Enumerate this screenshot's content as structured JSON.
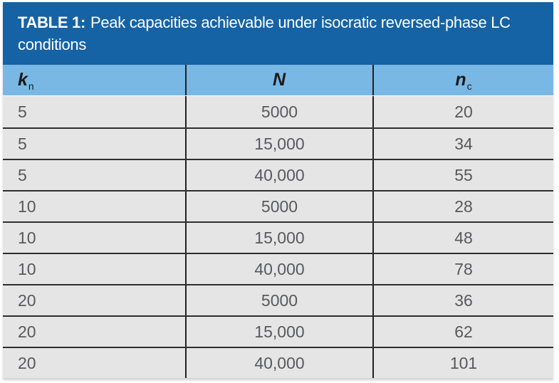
{
  "table": {
    "title_label": "TABLE 1:",
    "title_text": "Peak capacities achievable under isocratic reversed-phase LC conditions",
    "columns": [
      {
        "symbol": "k",
        "subscript": "n"
      },
      {
        "symbol": "N",
        "subscript": ""
      },
      {
        "symbol": "n",
        "subscript": "c"
      }
    ],
    "rows": [
      [
        "5",
        "5000",
        "20"
      ],
      [
        "5",
        "15,000",
        "34"
      ],
      [
        "5",
        "40,000",
        "55"
      ],
      [
        "10",
        "5000",
        "28"
      ],
      [
        "10",
        "15,000",
        "48"
      ],
      [
        "10",
        "40,000",
        "78"
      ],
      [
        "20",
        "5000",
        "36"
      ],
      [
        "20",
        "15,000",
        "62"
      ],
      [
        "20",
        "40,000",
        "101"
      ]
    ]
  },
  "chart_data": {
    "type": "table",
    "title": "TABLE 1: Peak capacities achievable under isocratic reversed-phase LC conditions",
    "columns": [
      "k_n",
      "N",
      "n_c"
    ],
    "rows": [
      [
        5,
        5000,
        20
      ],
      [
        5,
        15000,
        34
      ],
      [
        5,
        40000,
        55
      ],
      [
        10,
        5000,
        28
      ],
      [
        10,
        15000,
        48
      ],
      [
        10,
        40000,
        78
      ],
      [
        20,
        5000,
        36
      ],
      [
        20,
        15000,
        62
      ],
      [
        20,
        40000,
        101
      ]
    ]
  },
  "colors": {
    "title_bg": "#1563A5",
    "title_text": "#FFFFFF",
    "header_bg": "#79B8E4",
    "header_text": "#1A1A1A",
    "row_bg": "#E5E5E6",
    "row_divider": "#2E2E2E",
    "divider": "#231F20",
    "data_text": "#58595B"
  }
}
